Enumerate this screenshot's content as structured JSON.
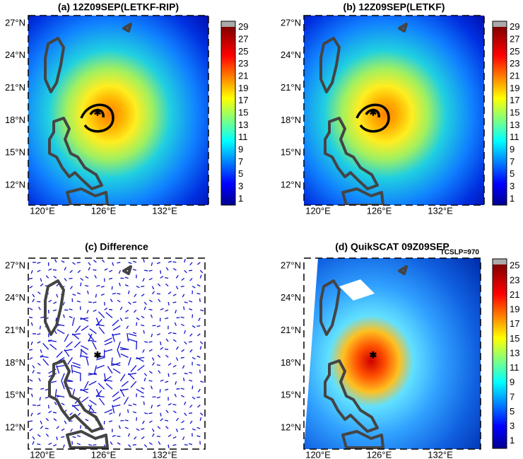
{
  "panels": [
    {
      "title": "(a) 12Z09SEP(LETKF-RIP)",
      "lat_labels": [
        "27°N",
        "24°N",
        "21°N",
        "18°N",
        "15°N",
        "12°N"
      ],
      "lon_labels": [
        "120°E",
        "126°E",
        "132°E"
      ],
      "colorbar": [
        29,
        27,
        25,
        23,
        21,
        19,
        17,
        15,
        13,
        11,
        9,
        7,
        5,
        3,
        1
      ]
    },
    {
      "title": "(b) 12Z09SEP(LETKF)",
      "lat_labels": [
        "27°N",
        "24°N",
        "21°N",
        "18°N",
        "15°N",
        "12°N"
      ],
      "lon_labels": [
        "120°E",
        "126°E",
        "132°E"
      ],
      "colorbar": [
        29,
        27,
        25,
        23,
        21,
        19,
        17,
        15,
        13,
        11,
        9,
        7,
        5,
        3,
        1
      ]
    },
    {
      "title": "(c) Difference",
      "lat_labels": [
        "27°N",
        "24°N",
        "21°N",
        "18°N",
        "15°N",
        "12°N"
      ],
      "lon_labels": [
        "120°E",
        "126°E",
        "132°E"
      ]
    },
    {
      "title": "(d) QuikSCAT 09Z09SEP",
      "annotation": "TCSLP=970",
      "lat_labels": [
        "27°N",
        "24°N",
        "21°N",
        "18°N",
        "15°N",
        "12°N"
      ],
      "lon_labels": [
        "120°E",
        "126°E",
        "132°E"
      ],
      "colorbar": [
        25,
        23,
        21,
        19,
        17,
        15,
        13,
        11,
        9,
        7,
        5,
        3,
        1
      ]
    }
  ]
}
